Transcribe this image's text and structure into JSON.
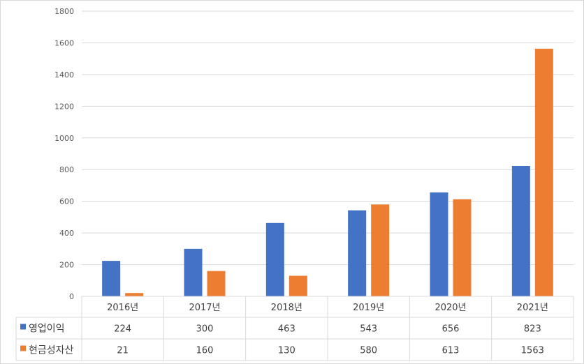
{
  "chart_data": {
    "type": "bar",
    "categories": [
      "2016년",
      "2017년",
      "2018년",
      "2019년",
      "2020년",
      "2021년"
    ],
    "series": [
      {
        "name": "영업이익",
        "values": [
          224,
          300,
          463,
          543,
          656,
          823
        ],
        "color": "#4472c4"
      },
      {
        "name": "현금성자산",
        "values": [
          21,
          160,
          130,
          580,
          613,
          1563
        ],
        "color": "#ed7d31"
      }
    ],
    "ylim": [
      0,
      1800
    ],
    "yticks": [
      0,
      200,
      400,
      600,
      800,
      1000,
      1200,
      1400,
      1600,
      1800
    ],
    "grid": true,
    "legend": "data-table-left",
    "data_table": true
  }
}
